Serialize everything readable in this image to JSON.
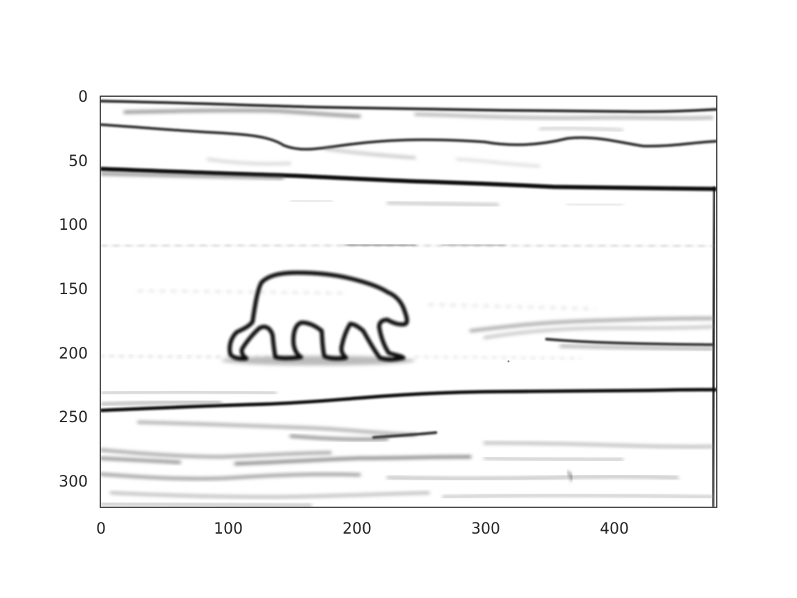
{
  "image": {
    "subject": "polar bear",
    "rendering": "grayscale edge-detection (Sobel-style) image: white background with dark edge lines",
    "colors": {
      "background": "#ffffff",
      "edges": "#000000",
      "frame": "#262626",
      "tick_text": "#262626"
    }
  },
  "axes": {
    "x_ticks": [
      "0",
      "100",
      "200",
      "300",
      "400"
    ],
    "y_ticks": [
      "0",
      "50",
      "100",
      "150",
      "200",
      "250",
      "300"
    ],
    "x_range": [
      0,
      480
    ],
    "y_range": [
      0,
      320
    ],
    "y_inverted": true
  }
}
